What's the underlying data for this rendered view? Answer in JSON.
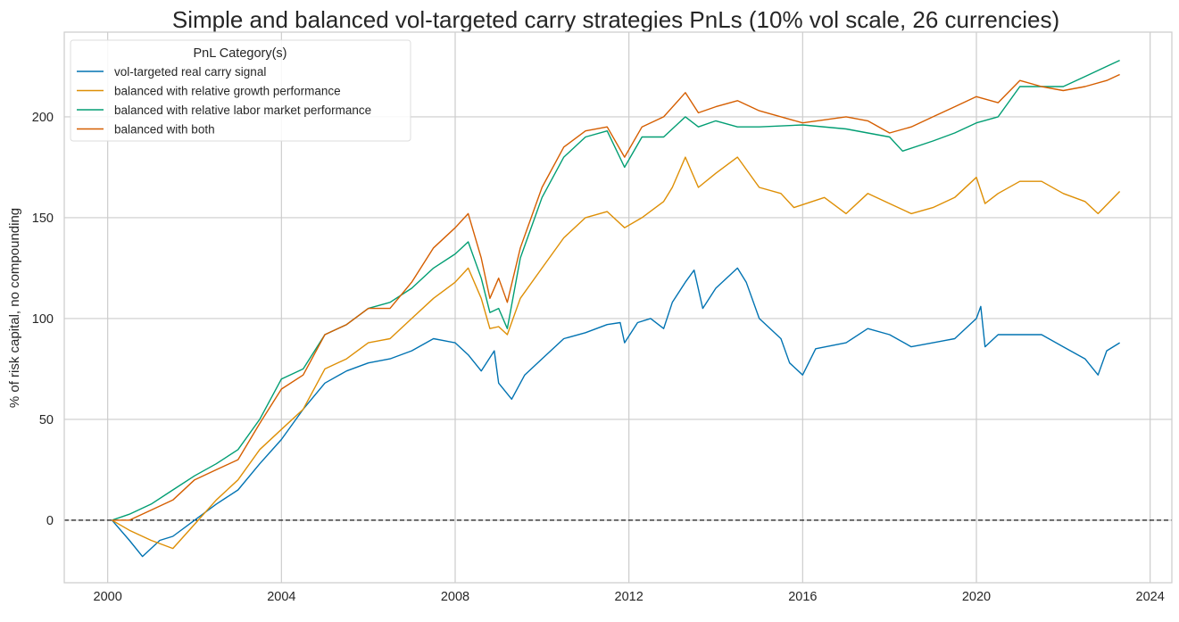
{
  "chart_data": {
    "type": "line",
    "title": "Simple and balanced vol-targeted carry strategies PnLs (10% vol scale, 26 currencies)",
    "xlabel": "",
    "ylabel": "% of risk capital, no compounding",
    "xlim": [
      1999.0,
      2024.5
    ],
    "ylim": [
      -31,
      242
    ],
    "xticks": [
      2000,
      2004,
      2008,
      2012,
      2016,
      2020,
      2024
    ],
    "yticks": [
      0,
      50,
      100,
      150,
      200
    ],
    "grid": true,
    "reference_line": {
      "y": 0,
      "style": "dashed",
      "color": "#000000"
    },
    "legend": {
      "title": "PnL Category(s)",
      "placement": "top-left"
    },
    "series": [
      {
        "name": "vol-targeted real carry signal",
        "color": "#0173b2",
        "points": [
          [
            2000.1,
            0
          ],
          [
            2000.5,
            -10
          ],
          [
            2000.8,
            -18
          ],
          [
            2001.2,
            -10
          ],
          [
            2001.5,
            -8
          ],
          [
            2002.0,
            0
          ],
          [
            2002.5,
            8
          ],
          [
            2003.0,
            15
          ],
          [
            2003.5,
            28
          ],
          [
            2004.0,
            40
          ],
          [
            2004.5,
            55
          ],
          [
            2005.0,
            68
          ],
          [
            2005.5,
            74
          ],
          [
            2006.0,
            78
          ],
          [
            2006.5,
            80
          ],
          [
            2007.0,
            84
          ],
          [
            2007.5,
            90
          ],
          [
            2008.0,
            88
          ],
          [
            2008.3,
            82
          ],
          [
            2008.6,
            74
          ],
          [
            2008.9,
            84
          ],
          [
            2009.0,
            68
          ],
          [
            2009.3,
            60
          ],
          [
            2009.6,
            72
          ],
          [
            2010.0,
            80
          ],
          [
            2010.5,
            90
          ],
          [
            2011.0,
            93
          ],
          [
            2011.5,
            97
          ],
          [
            2011.8,
            98
          ],
          [
            2011.9,
            88
          ],
          [
            2012.2,
            98
          ],
          [
            2012.5,
            100
          ],
          [
            2012.8,
            95
          ],
          [
            2013.0,
            108
          ],
          [
            2013.3,
            118
          ],
          [
            2013.5,
            124
          ],
          [
            2013.7,
            105
          ],
          [
            2014.0,
            115
          ],
          [
            2014.5,
            125
          ],
          [
            2014.7,
            118
          ],
          [
            2015.0,
            100
          ],
          [
            2015.5,
            90
          ],
          [
            2015.7,
            78
          ],
          [
            2016.0,
            72
          ],
          [
            2016.3,
            85
          ],
          [
            2017.0,
            88
          ],
          [
            2017.5,
            95
          ],
          [
            2018.0,
            92
          ],
          [
            2018.5,
            86
          ],
          [
            2019.0,
            88
          ],
          [
            2019.5,
            90
          ],
          [
            2020.0,
            100
          ],
          [
            2020.1,
            106
          ],
          [
            2020.2,
            86
          ],
          [
            2020.5,
            92
          ],
          [
            2021.0,
            92
          ],
          [
            2021.5,
            92
          ],
          [
            2022.0,
            86
          ],
          [
            2022.5,
            80
          ],
          [
            2022.8,
            72
          ],
          [
            2023.0,
            84
          ],
          [
            2023.3,
            88
          ]
        ]
      },
      {
        "name": "balanced with relative growth performance",
        "color": "#de8f05",
        "points": [
          [
            2000.1,
            0
          ],
          [
            2000.5,
            -5
          ],
          [
            2001.0,
            -10
          ],
          [
            2001.5,
            -14
          ],
          [
            2002.0,
            -2
          ],
          [
            2002.5,
            10
          ],
          [
            2003.0,
            20
          ],
          [
            2003.5,
            35
          ],
          [
            2004.0,
            45
          ],
          [
            2004.5,
            55
          ],
          [
            2005.0,
            75
          ],
          [
            2005.5,
            80
          ],
          [
            2006.0,
            88
          ],
          [
            2006.5,
            90
          ],
          [
            2007.0,
            100
          ],
          [
            2007.5,
            110
          ],
          [
            2008.0,
            118
          ],
          [
            2008.3,
            125
          ],
          [
            2008.6,
            110
          ],
          [
            2008.8,
            95
          ],
          [
            2009.0,
            96
          ],
          [
            2009.2,
            92
          ],
          [
            2009.5,
            110
          ],
          [
            2010.0,
            125
          ],
          [
            2010.5,
            140
          ],
          [
            2011.0,
            150
          ],
          [
            2011.5,
            153
          ],
          [
            2011.9,
            145
          ],
          [
            2012.3,
            150
          ],
          [
            2012.8,
            158
          ],
          [
            2013.0,
            165
          ],
          [
            2013.3,
            180
          ],
          [
            2013.6,
            165
          ],
          [
            2014.0,
            172
          ],
          [
            2014.5,
            180
          ],
          [
            2015.0,
            165
          ],
          [
            2015.5,
            162
          ],
          [
            2015.8,
            155
          ],
          [
            2016.5,
            160
          ],
          [
            2017.0,
            152
          ],
          [
            2017.5,
            162
          ],
          [
            2018.0,
            157
          ],
          [
            2018.5,
            152
          ],
          [
            2019.0,
            155
          ],
          [
            2019.5,
            160
          ],
          [
            2020.0,
            170
          ],
          [
            2020.2,
            157
          ],
          [
            2020.5,
            162
          ],
          [
            2021.0,
            168
          ],
          [
            2021.5,
            168
          ],
          [
            2022.0,
            162
          ],
          [
            2022.5,
            158
          ],
          [
            2022.8,
            152
          ],
          [
            2023.3,
            163
          ]
        ]
      },
      {
        "name": "balanced with relative labor market performance",
        "color": "#029e73",
        "points": [
          [
            2000.1,
            0
          ],
          [
            2000.5,
            3
          ],
          [
            2001.0,
            8
          ],
          [
            2001.5,
            15
          ],
          [
            2002.0,
            22
          ],
          [
            2002.5,
            28
          ],
          [
            2003.0,
            35
          ],
          [
            2003.5,
            50
          ],
          [
            2004.0,
            70
          ],
          [
            2004.5,
            75
          ],
          [
            2005.0,
            92
          ],
          [
            2005.5,
            97
          ],
          [
            2006.0,
            105
          ],
          [
            2006.5,
            108
          ],
          [
            2007.0,
            115
          ],
          [
            2007.5,
            125
          ],
          [
            2008.0,
            132
          ],
          [
            2008.3,
            138
          ],
          [
            2008.6,
            120
          ],
          [
            2008.8,
            103
          ],
          [
            2009.0,
            105
          ],
          [
            2009.2,
            95
          ],
          [
            2009.5,
            130
          ],
          [
            2010.0,
            160
          ],
          [
            2010.5,
            180
          ],
          [
            2011.0,
            190
          ],
          [
            2011.5,
            193
          ],
          [
            2011.9,
            175
          ],
          [
            2012.3,
            190
          ],
          [
            2012.8,
            190
          ],
          [
            2013.3,
            200
          ],
          [
            2013.6,
            195
          ],
          [
            2014.0,
            198
          ],
          [
            2014.5,
            195
          ],
          [
            2015.0,
            195
          ],
          [
            2016.0,
            196
          ],
          [
            2017.0,
            194
          ],
          [
            2017.5,
            192
          ],
          [
            2018.0,
            190
          ],
          [
            2018.3,
            183
          ],
          [
            2019.0,
            188
          ],
          [
            2019.5,
            192
          ],
          [
            2020.0,
            197
          ],
          [
            2020.5,
            200
          ],
          [
            2021.0,
            215
          ],
          [
            2021.5,
            215
          ],
          [
            2022.0,
            215
          ],
          [
            2022.5,
            220
          ],
          [
            2023.0,
            225
          ],
          [
            2023.3,
            228
          ]
        ]
      },
      {
        "name": "balanced with both",
        "color": "#d55e00",
        "points": [
          [
            2000.1,
            0
          ],
          [
            2000.5,
            0
          ],
          [
            2001.0,
            5
          ],
          [
            2001.5,
            10
          ],
          [
            2002.0,
            20
          ],
          [
            2002.5,
            25
          ],
          [
            2003.0,
            30
          ],
          [
            2003.5,
            48
          ],
          [
            2004.0,
            65
          ],
          [
            2004.5,
            72
          ],
          [
            2005.0,
            92
          ],
          [
            2005.5,
            97
          ],
          [
            2006.0,
            105
          ],
          [
            2006.5,
            105
          ],
          [
            2007.0,
            118
          ],
          [
            2007.5,
            135
          ],
          [
            2008.0,
            145
          ],
          [
            2008.3,
            152
          ],
          [
            2008.6,
            130
          ],
          [
            2008.8,
            110
          ],
          [
            2009.0,
            120
          ],
          [
            2009.2,
            108
          ],
          [
            2009.5,
            135
          ],
          [
            2010.0,
            165
          ],
          [
            2010.5,
            185
          ],
          [
            2011.0,
            193
          ],
          [
            2011.5,
            195
          ],
          [
            2011.9,
            180
          ],
          [
            2012.3,
            195
          ],
          [
            2012.8,
            200
          ],
          [
            2013.3,
            212
          ],
          [
            2013.6,
            202
          ],
          [
            2014.0,
            205
          ],
          [
            2014.5,
            208
          ],
          [
            2015.0,
            203
          ],
          [
            2016.0,
            197
          ],
          [
            2017.0,
            200
          ],
          [
            2017.5,
            198
          ],
          [
            2018.0,
            192
          ],
          [
            2018.5,
            195
          ],
          [
            2019.0,
            200
          ],
          [
            2019.5,
            205
          ],
          [
            2020.0,
            210
          ],
          [
            2020.5,
            207
          ],
          [
            2021.0,
            218
          ],
          [
            2021.5,
            215
          ],
          [
            2022.0,
            213
          ],
          [
            2022.5,
            215
          ],
          [
            2023.0,
            218
          ],
          [
            2023.3,
            221
          ]
        ]
      }
    ]
  }
}
